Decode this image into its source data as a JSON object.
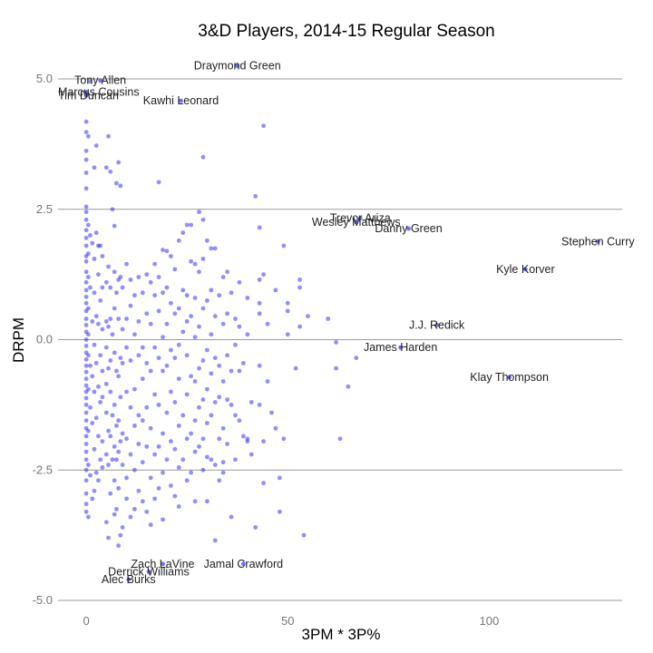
{
  "chart_data": {
    "type": "scatter",
    "title": "3&D Players, 2014-15 Regular Season",
    "xlabel": "3PM * 3P%",
    "ylabel": "DRPM",
    "xlim": [
      -7,
      133
    ],
    "ylim": [
      -5.0,
      5.0
    ],
    "x_ticks": [
      0,
      50,
      100
    ],
    "y_ticks": [
      5.0,
      2.5,
      0.0,
      -2.5,
      -5.0
    ],
    "y_tick_labels": [
      "5.0",
      "2.5",
      "0.0",
      "-2.5",
      "-5.0"
    ],
    "grid": "horizontal",
    "point_color": "#3333ff",
    "labeled_points": [
      {
        "label": "Draymond Green",
        "x": 37.5,
        "y": 5.25
      },
      {
        "label": "Tony Allen",
        "x": 3.5,
        "y": 4.97
      },
      {
        "label": "Marcus Cousins",
        "x": 0.0,
        "y": 4.75
      },
      {
        "label": "Tim Duncan",
        "x": 0.0,
        "y": 4.68
      },
      {
        "label": "Kawhi Leonard",
        "x": 23.5,
        "y": 4.58
      },
      {
        "label": "Trevor Ariza",
        "x": 68.0,
        "y": 2.33
      },
      {
        "label": "Wesley Matthews",
        "x": 67.0,
        "y": 2.25
      },
      {
        "label": "Danny Green",
        "x": 80.0,
        "y": 2.13
      },
      {
        "label": "Stephen Curry",
        "x": 127.0,
        "y": 1.88
      },
      {
        "label": "Kyle Korver",
        "x": 109.0,
        "y": 1.35
      },
      {
        "label": "J.J. Redick",
        "x": 87.0,
        "y": 0.28
      },
      {
        "label": "James Harden",
        "x": 78.0,
        "y": -0.15
      },
      {
        "label": "Klay Thompson",
        "x": 105.0,
        "y": -0.72
      },
      {
        "label": "Zach LaVine",
        "x": 19.0,
        "y": -4.3
      },
      {
        "label": "Derrick Williams",
        "x": 15.5,
        "y": -4.45
      },
      {
        "label": "Jamal Crawford",
        "x": 39.0,
        "y": -4.3
      },
      {
        "label": "Alec Burks",
        "x": 10.5,
        "y": -4.6
      }
    ],
    "points": [
      [
        0,
        4.18
      ],
      [
        0,
        3.98
      ],
      [
        0,
        3.62
      ],
      [
        0,
        3.45
      ],
      [
        0,
        3.2
      ],
      [
        0,
        2.9
      ],
      [
        0,
        2.55
      ],
      [
        0,
        2.45
      ],
      [
        0,
        2.3
      ],
      [
        0,
        2.1
      ],
      [
        0,
        1.95
      ],
      [
        0,
        1.8
      ],
      [
        0,
        1.6
      ],
      [
        0,
        1.5
      ],
      [
        0,
        1.3
      ],
      [
        0,
        1.1
      ],
      [
        0,
        0.95
      ],
      [
        0,
        0.82
      ],
      [
        0,
        0.7
      ],
      [
        0,
        0.55
      ],
      [
        0,
        0.4
      ],
      [
        0,
        0.28
      ],
      [
        0,
        0.15
      ],
      [
        0,
        0.0
      ],
      [
        0,
        -0.12
      ],
      [
        0,
        -0.25
      ],
      [
        0,
        -0.38
      ],
      [
        0,
        -0.5
      ],
      [
        0,
        -0.62
      ],
      [
        0,
        -0.75
      ],
      [
        0,
        -0.88
      ],
      [
        0,
        -1.0
      ],
      [
        0,
        -1.12
      ],
      [
        0,
        -1.25
      ],
      [
        0,
        -1.4
      ],
      [
        0,
        -1.55
      ],
      [
        0,
        -1.7
      ],
      [
        0,
        -1.85
      ],
      [
        0,
        -2.0
      ],
      [
        0,
        -2.15
      ],
      [
        0,
        -2.3
      ],
      [
        0,
        -2.5
      ],
      [
        0,
        -2.7
      ],
      [
        0,
        -2.95
      ],
      [
        0,
        -3.15
      ],
      [
        0,
        -3.3
      ],
      [
        0.5,
        3.9
      ],
      [
        0.5,
        2.2
      ],
      [
        0.5,
        1.65
      ],
      [
        0.5,
        1.2
      ],
      [
        0.5,
        0.6
      ],
      [
        0.5,
        0.1
      ],
      [
        0.5,
        -0.3
      ],
      [
        0.5,
        -0.95
      ],
      [
        0.5,
        -1.75
      ],
      [
        0.5,
        -2.4
      ],
      [
        0.5,
        -3.4
      ],
      [
        1,
        4.95
      ],
      [
        1,
        2.0
      ],
      [
        1,
        1.0
      ],
      [
        1,
        -0.5
      ],
      [
        1,
        -1.3
      ],
      [
        1,
        -2.6
      ],
      [
        1.5,
        1.85
      ],
      [
        1.5,
        0.35
      ],
      [
        1.5,
        -0.7
      ],
      [
        1.5,
        -1.6
      ],
      [
        1.5,
        -3.05
      ],
      [
        2,
        3.3
      ],
      [
        2,
        1.55
      ],
      [
        2,
        0.9
      ],
      [
        2,
        -0.1
      ],
      [
        2,
        -1.0
      ],
      [
        2,
        -2.1
      ],
      [
        2,
        -2.9
      ],
      [
        2.5,
        3.72
      ],
      [
        2.5,
        2.05
      ],
      [
        2.5,
        0.45
      ],
      [
        2.5,
        -0.45
      ],
      [
        2.5,
        -1.5
      ],
      [
        2.5,
        -2.55
      ],
      [
        3,
        1.8
      ],
      [
        3,
        1.25
      ],
      [
        3,
        0.3
      ],
      [
        3,
        -0.9
      ],
      [
        3,
        -1.85
      ],
      [
        3,
        -2.7
      ],
      [
        3.5,
        1.8
      ],
      [
        3.5,
        0.75
      ],
      [
        3.5,
        -0.3
      ],
      [
        3.5,
        -1.2
      ],
      [
        3.5,
        -2.3
      ],
      [
        4,
        1.6
      ],
      [
        4,
        1.0
      ],
      [
        4,
        0.2
      ],
      [
        4,
        -0.6
      ],
      [
        4,
        -1.1
      ],
      [
        4,
        -1.95
      ],
      [
        4,
        -2.45
      ],
      [
        5,
        3.3
      ],
      [
        5,
        1.1
      ],
      [
        5,
        0.35
      ],
      [
        5,
        -0.15
      ],
      [
        5,
        -0.85
      ],
      [
        5,
        -1.4
      ],
      [
        5,
        -2.2
      ],
      [
        5,
        -3.5
      ],
      [
        5.5,
        3.9
      ],
      [
        5.5,
        1.4
      ],
      [
        5.5,
        0.25
      ],
      [
        5.5,
        -0.55
      ],
      [
        5.5,
        -1.75
      ],
      [
        5.5,
        -2.4
      ],
      [
        5.5,
        -3.8
      ],
      [
        6,
        3.22
      ],
      [
        6,
        1.0
      ],
      [
        6,
        0.4
      ],
      [
        6,
        -0.4
      ],
      [
        6,
        -1.0
      ],
      [
        6,
        -1.85
      ],
      [
        6,
        -2.95
      ],
      [
        6.5,
        2.5
      ],
      [
        6.5,
        0.1
      ],
      [
        6.5,
        -1.45
      ],
      [
        6.5,
        -2.3
      ],
      [
        7,
        2.18
      ],
      [
        7,
        1.3
      ],
      [
        7,
        0.6
      ],
      [
        7,
        -0.25
      ],
      [
        7,
        -1.25
      ],
      [
        7,
        -2.05
      ],
      [
        7,
        -2.7
      ],
      [
        7,
        -3.35
      ],
      [
        7.5,
        3.0
      ],
      [
        7.5,
        0.9
      ],
      [
        7.5,
        -0.6
      ],
      [
        7.5,
        -1.65
      ],
      [
        7.5,
        -2.3
      ],
      [
        7.5,
        -3.25
      ],
      [
        8,
        3.4
      ],
      [
        8,
        1.15
      ],
      [
        8,
        0.4
      ],
      [
        8,
        -0.7
      ],
      [
        8,
        -1.55
      ],
      [
        8,
        -2.15
      ],
      [
        8,
        -2.85
      ],
      [
        8,
        -3.95
      ],
      [
        8.5,
        2.95
      ],
      [
        8.5,
        1.2
      ],
      [
        8.5,
        -0.35
      ],
      [
        8.5,
        -1.1
      ],
      [
        8.5,
        -1.95
      ],
      [
        8.5,
        -3.75
      ],
      [
        9,
        1.0
      ],
      [
        9,
        0.2
      ],
      [
        9,
        -0.45
      ],
      [
        9,
        -1.8
      ],
      [
        9,
        -2.4
      ],
      [
        9,
        -3.6
      ],
      [
        10,
        1.45
      ],
      [
        10,
        0.4
      ],
      [
        10,
        -0.15
      ],
      [
        10,
        -1.0
      ],
      [
        10,
        -1.9
      ],
      [
        10,
        -2.65
      ],
      [
        10,
        -3.05
      ],
      [
        11,
        1.15
      ],
      [
        11,
        0.65
      ],
      [
        11,
        -0.4
      ],
      [
        11,
        -1.3
      ],
      [
        11,
        -2.2
      ],
      [
        11,
        -3.4
      ],
      [
        12,
        0.85
      ],
      [
        12,
        0.1
      ],
      [
        12,
        -0.95
      ],
      [
        12,
        -1.65
      ],
      [
        12,
        -2.5
      ],
      [
        12,
        -3.25
      ],
      [
        13,
        1.2
      ],
      [
        13,
        0.35
      ],
      [
        13,
        -0.3
      ],
      [
        13,
        -1.45
      ],
      [
        13,
        -2.0
      ],
      [
        13,
        -2.9
      ],
      [
        14,
        0.9
      ],
      [
        14,
        -0.15
      ],
      [
        14,
        -0.75
      ],
      [
        14,
        -1.55
      ],
      [
        14,
        -2.35
      ],
      [
        14,
        -3.1
      ],
      [
        15,
        1.25
      ],
      [
        15,
        0.5
      ],
      [
        15,
        -0.45
      ],
      [
        15,
        -1.3
      ],
      [
        15,
        -2.05
      ],
      [
        15,
        -3.3
      ],
      [
        16,
        1.1
      ],
      [
        16,
        0.3
      ],
      [
        16,
        -0.6
      ],
      [
        16,
        -1.7
      ],
      [
        16,
        -2.65
      ],
      [
        16,
        -3.55
      ],
      [
        17,
        1.45
      ],
      [
        17,
        0.85
      ],
      [
        17,
        -0.15
      ],
      [
        17,
        -1.05
      ],
      [
        17,
        -2.2
      ],
      [
        17,
        -3.05
      ],
      [
        18,
        3.02
      ],
      [
        18,
        1.2
      ],
      [
        18,
        0.55
      ],
      [
        18,
        -0.35
      ],
      [
        18,
        -1.25
      ],
      [
        18,
        -2.05
      ],
      [
        18,
        -2.85
      ],
      [
        19,
        1.72
      ],
      [
        19,
        0.9
      ],
      [
        19,
        0.05
      ],
      [
        19,
        -0.6
      ],
      [
        19,
        -1.8
      ],
      [
        19,
        -2.55
      ],
      [
        19,
        -3.45
      ],
      [
        20,
        1.7
      ],
      [
        20,
        1.0
      ],
      [
        20,
        0.3
      ],
      [
        20,
        -0.5
      ],
      [
        20,
        -1.4
      ],
      [
        20,
        -2.3
      ],
      [
        21,
        1.6
      ],
      [
        21,
        0.7
      ],
      [
        21,
        -0.2
      ],
      [
        21,
        -1.0
      ],
      [
        21,
        -1.95
      ],
      [
        21,
        -2.8
      ],
      [
        22,
        1.35
      ],
      [
        22,
        0.5
      ],
      [
        22,
        -0.35
      ],
      [
        22,
        -1.2
      ],
      [
        22,
        -2.1
      ],
      [
        22,
        -3.0
      ],
      [
        23,
        1.9
      ],
      [
        23,
        0.6
      ],
      [
        23,
        -0.1
      ],
      [
        23,
        -0.75
      ],
      [
        23,
        -1.65
      ],
      [
        23,
        -2.45
      ],
      [
        23,
        -3.2
      ],
      [
        24,
        2.05
      ],
      [
        24,
        0.95
      ],
      [
        24,
        0.15
      ],
      [
        24,
        -1.45
      ],
      [
        24,
        -2.3
      ],
      [
        25,
        2.2
      ],
      [
        25,
        0.85
      ],
      [
        25,
        0.35
      ],
      [
        25,
        -0.3
      ],
      [
        25,
        -1.05
      ],
      [
        25,
        -1.9
      ],
      [
        25,
        -2.7
      ],
      [
        26,
        2.2
      ],
      [
        26,
        1.5
      ],
      [
        26,
        0.45
      ],
      [
        26,
        -0.7
      ],
      [
        26,
        -1.8
      ],
      [
        26,
        -2.55
      ],
      [
        27,
        1.45
      ],
      [
        27,
        0.8
      ],
      [
        27,
        0.05
      ],
      [
        27,
        -0.8
      ],
      [
        27,
        -1.55
      ],
      [
        27,
        -2.15
      ],
      [
        27,
        -3.1
      ],
      [
        28,
        2.45
      ],
      [
        28,
        1.3
      ],
      [
        28,
        0.25
      ],
      [
        28,
        -0.55
      ],
      [
        28,
        -1.3
      ],
      [
        28,
        -2.05
      ],
      [
        29,
        3.5
      ],
      [
        29,
        2.3
      ],
      [
        29,
        1.55
      ],
      [
        29,
        0.6
      ],
      [
        29,
        -0.4
      ],
      [
        29,
        -1.15
      ],
      [
        29,
        -1.9
      ],
      [
        29,
        -2.5
      ],
      [
        30,
        1.9
      ],
      [
        30,
        0.75
      ],
      [
        30,
        -0.2
      ],
      [
        30,
        -0.95
      ],
      [
        30,
        -1.6
      ],
      [
        30,
        -2.25
      ],
      [
        30,
        -3.1
      ],
      [
        31,
        1.75
      ],
      [
        31,
        0.95
      ],
      [
        31,
        0.1
      ],
      [
        31,
        -0.65
      ],
      [
        31,
        -1.45
      ],
      [
        31,
        -2.3
      ],
      [
        32,
        1.75
      ],
      [
        32,
        0.45
      ],
      [
        32,
        -0.35
      ],
      [
        32,
        -1.2
      ],
      [
        32,
        -2.4
      ],
      [
        32,
        -3.85
      ],
      [
        33,
        0.85
      ],
      [
        33,
        -0.5
      ],
      [
        33,
        -1.1
      ],
      [
        33,
        -1.9
      ],
      [
        33,
        -2.7
      ],
      [
        34,
        1.2
      ],
      [
        34,
        0.3
      ],
      [
        34,
        -0.8
      ],
      [
        34,
        -1.7
      ],
      [
        34,
        -2.35
      ],
      [
        34,
        -2.55
      ],
      [
        35,
        1.3
      ],
      [
        35,
        0.5
      ],
      [
        35,
        -0.3
      ],
      [
        35,
        -1.15
      ],
      [
        35,
        -2.0
      ],
      [
        36,
        0.9
      ],
      [
        36,
        -0.6
      ],
      [
        36,
        -1.25
      ],
      [
        36,
        -3.4
      ],
      [
        37,
        0.4
      ],
      [
        37,
        -0.1
      ],
      [
        37,
        -1.45
      ],
      [
        37,
        -2.3
      ],
      [
        38,
        1.1
      ],
      [
        38,
        0.25
      ],
      [
        38,
        -0.6
      ],
      [
        38,
        -1.55
      ],
      [
        39,
        -0.45
      ],
      [
        39,
        -1.85
      ],
      [
        40,
        0.8
      ],
      [
        40,
        0.1
      ],
      [
        40,
        -1.9
      ],
      [
        40,
        -1.95
      ],
      [
        41,
        -1.2
      ],
      [
        41,
        -2.2
      ],
      [
        42,
        2.75
      ],
      [
        42,
        -3.6
      ],
      [
        43,
        2.15
      ],
      [
        43,
        1.15
      ],
      [
        43,
        0.7
      ],
      [
        43,
        0.5
      ],
      [
        43,
        -0.5
      ],
      [
        43,
        -1.25
      ],
      [
        44,
        4.1
      ],
      [
        44,
        1.25
      ],
      [
        44,
        -1.95
      ],
      [
        44,
        -2.75
      ],
      [
        45,
        0.3
      ],
      [
        45,
        -0.8
      ],
      [
        46,
        -1.4
      ],
      [
        47,
        0.95
      ],
      [
        47,
        -1.7
      ],
      [
        48,
        -2.65
      ],
      [
        48,
        -3.3
      ],
      [
        49,
        1.8
      ],
      [
        49,
        -1.9
      ],
      [
        50,
        0.7
      ],
      [
        50,
        0.55
      ],
      [
        50,
        0.1
      ],
      [
        52,
        -0.55
      ],
      [
        53,
        1.15
      ],
      [
        53,
        1.0
      ],
      [
        53,
        0.25
      ],
      [
        54,
        -3.75
      ],
      [
        55,
        0.45
      ],
      [
        60,
        0.4
      ],
      [
        62,
        -0.05
      ],
      [
        62,
        -0.55
      ],
      [
        63,
        -1.9
      ],
      [
        65,
        -0.9
      ],
      [
        67,
        -0.35
      ]
    ]
  }
}
